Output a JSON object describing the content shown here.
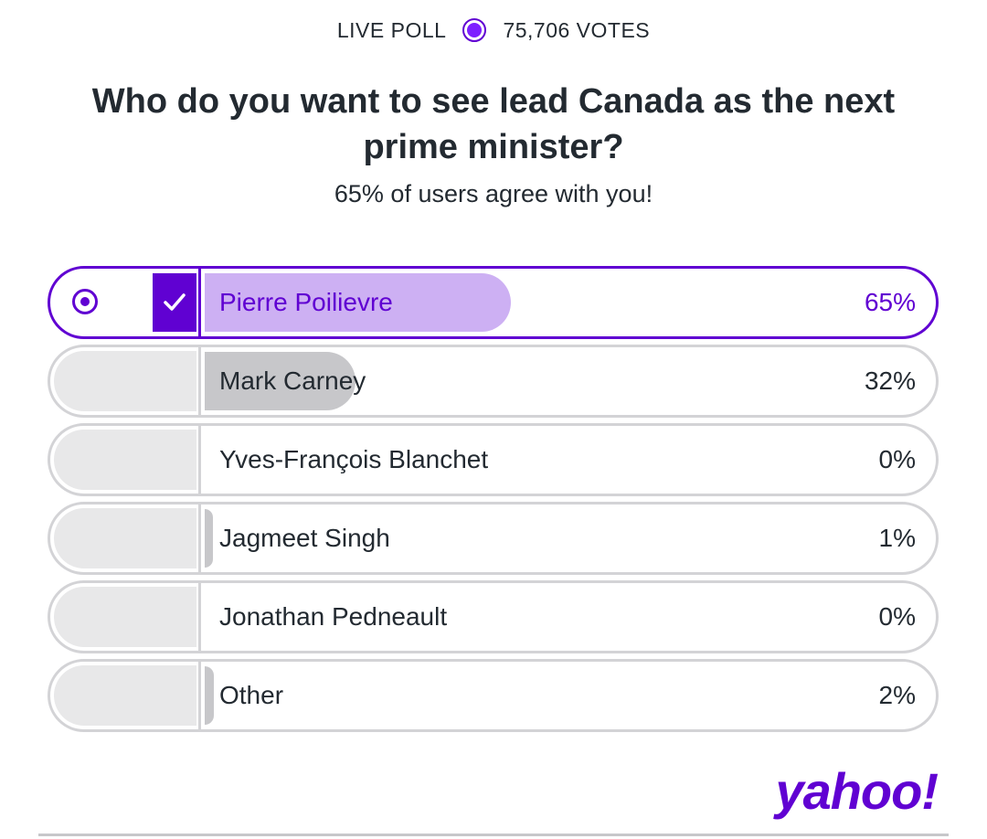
{
  "header": {
    "live_label": "LIVE POLL",
    "votes": "75,706 VOTES"
  },
  "question": "Who do you want to see lead Canada as the next prime minister?",
  "agree_text": "65% of users agree with you!",
  "colors": {
    "brand": "#6001d2",
    "selected_bar": "#cdb0f3",
    "bar": "#c7c7ca"
  },
  "options": [
    {
      "label": "Pierre Poilievre",
      "percent": "65%",
      "fill": 0.65,
      "selected": true
    },
    {
      "label": "Mark Carney",
      "percent": "32%",
      "fill": 0.32,
      "selected": false
    },
    {
      "label": "Yves-François Blanchet",
      "percent": "0%",
      "fill": 0.0,
      "selected": false
    },
    {
      "label": "Jagmeet Singh",
      "percent": "1%",
      "fill": 0.01,
      "selected": false
    },
    {
      "label": "Jonathan Pedneault",
      "percent": "0%",
      "fill": 0.0,
      "selected": false
    },
    {
      "label": "Other",
      "percent": "2%",
      "fill": 0.02,
      "selected": false
    }
  ],
  "logo": "yahoo!"
}
